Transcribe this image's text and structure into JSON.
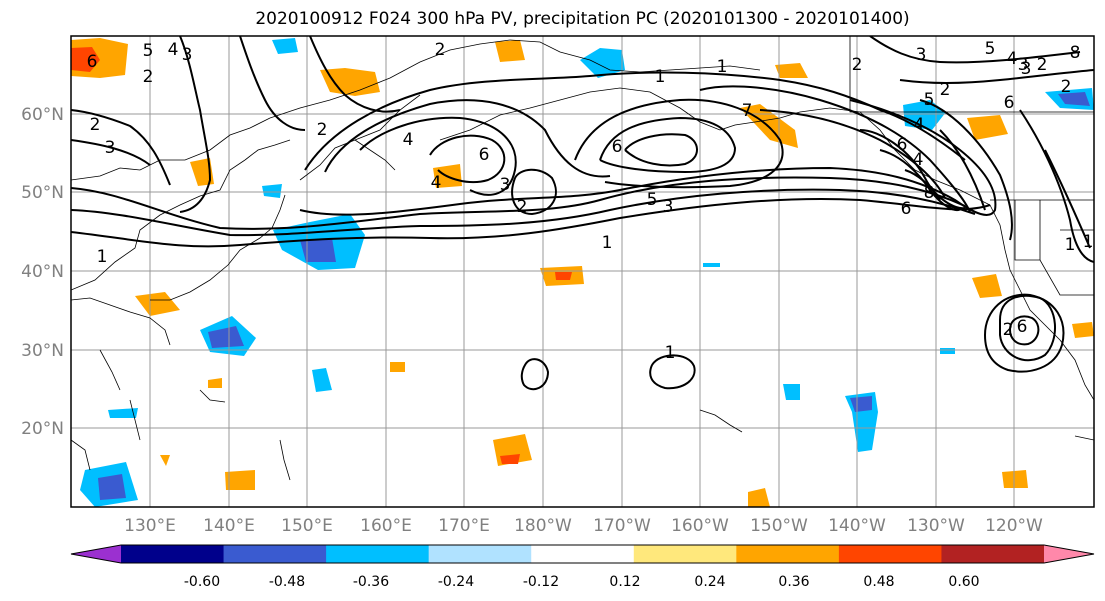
{
  "title": "2020100912 F024 300 hPa PV, precipitation PC (2020101300 - 2020101400)",
  "latitude_labels": [
    "60°N",
    "50°N",
    "40°N",
    "30°N",
    "20°N"
  ],
  "longitude_labels": [
    "130°E",
    "140°E",
    "150°E",
    "160°E",
    "170°E",
    "180°W",
    "170°W",
    "160°W",
    "150°W",
    "140°W",
    "130°W",
    "120°W"
  ],
  "contour_labels": [
    "6",
    "4",
    "3",
    "2",
    "5",
    "2",
    "3",
    "1",
    "6",
    "4",
    "3",
    "6",
    "2",
    "8",
    "7",
    "6",
    "5",
    "4",
    "3",
    "2",
    "6",
    "5",
    "4",
    "3",
    "2",
    "1",
    "1",
    "2",
    "3",
    "6",
    "5",
    "4",
    "3",
    "2",
    "1",
    "1",
    "2",
    "6",
    "8",
    "4",
    "2",
    "1",
    "1",
    "2"
  ],
  "colorbar": {
    "tick_labels": [
      "-0.60",
      "-0.48",
      "-0.36",
      "-0.24",
      "-0.12",
      "0.12",
      "0.24",
      "0.36",
      "0.48",
      "0.60"
    ],
    "colors": [
      "#9b30d0",
      "#00008b",
      "#3a5bd0",
      "#00bfff",
      "#b0e2ff",
      "#ffffff",
      "#ffe87c",
      "#ffa500",
      "#ff4500",
      "#b22222",
      "#ff88aa"
    ]
  },
  "colors": {
    "grid": "#999999",
    "contour": "#000000",
    "coast": "#000000",
    "axis_label": "#808080"
  }
}
